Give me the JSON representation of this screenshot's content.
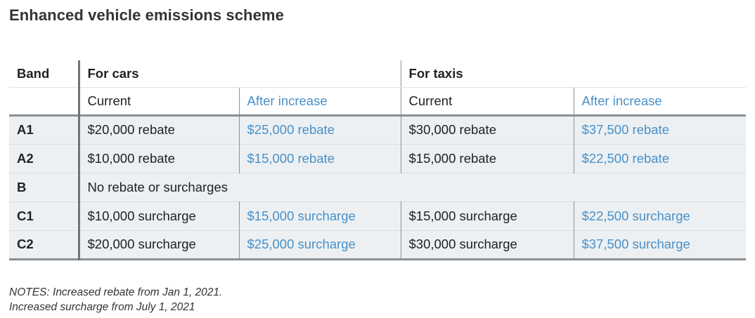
{
  "title": "Enhanced vehicle emissions scheme",
  "header": {
    "band": "Band",
    "cars": "For cars",
    "taxis": "For taxis",
    "current": "Current",
    "after_increase": "After increase"
  },
  "rows": [
    {
      "band": "A1",
      "car_current": "$20,000 rebate",
      "car_after": "$25,000 rebate",
      "taxi_current": "$30,000 rebate",
      "taxi_after": "$37,500 rebate"
    },
    {
      "band": "A2",
      "car_current": "$10,000 rebate",
      "car_after": "$15,000 rebate",
      "taxi_current": "$15,000 rebate",
      "taxi_after": "$22,500 rebate"
    },
    {
      "band": "B",
      "note": "No rebate or surcharges"
    },
    {
      "band": "C1",
      "car_current": "$10,000 surcharge",
      "car_after": "$15,000 surcharge",
      "taxi_current": "$15,000 surcharge",
      "taxi_after": "$22,500 surcharge"
    },
    {
      "band": "C2",
      "car_current": "$20,000 surcharge",
      "car_after": "$25,000 surcharge",
      "taxi_current": "$30,000 surcharge",
      "taxi_after": "$37,500 surcharge"
    }
  ],
  "notes": {
    "line1": "NOTES: Increased rebate from Jan 1, 2021.",
    "line2": "Increased surcharge from July 1, 2021"
  },
  "colors": {
    "accent_blue": "#4a90c8",
    "row_shade": "#ecf0f2",
    "rule": "#8a8f96"
  }
}
